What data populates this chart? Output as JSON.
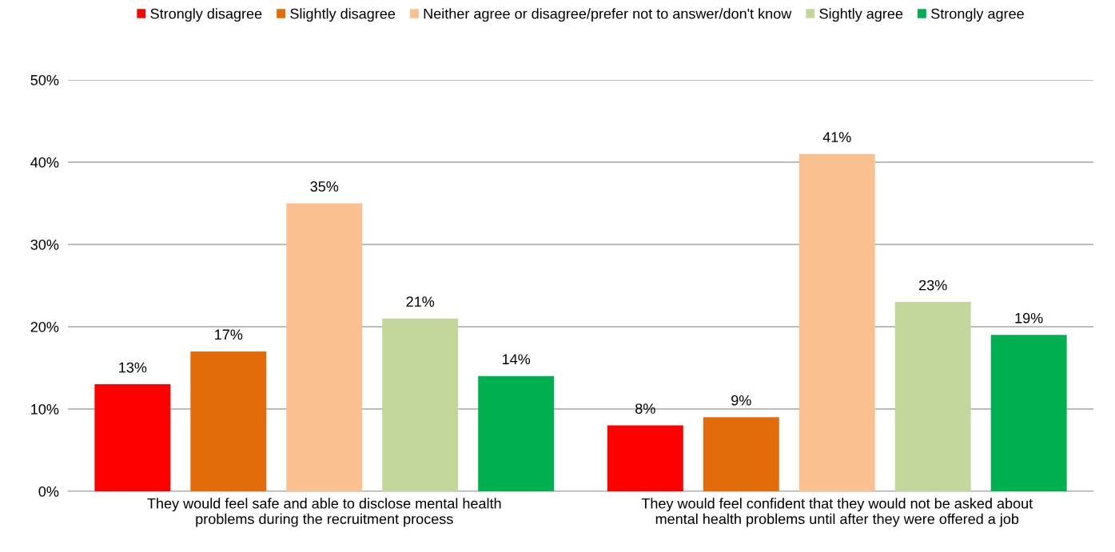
{
  "chart_data": {
    "type": "bar",
    "categories": [
      "They would feel safe and able to disclose mental health\nproblems during the recruitment process",
      "They would feel confident that they would not be asked about\nmental health problems until after they were offered a job"
    ],
    "series": [
      {
        "name": "Strongly disagree",
        "color": "#ff0000",
        "values": [
          13,
          8
        ],
        "value_labels": [
          "13%",
          "8%"
        ]
      },
      {
        "name": "Slightly disagree",
        "color": "#e36c0a",
        "values": [
          17,
          9
        ],
        "value_labels": [
          "17%",
          "9%"
        ]
      },
      {
        "name": "Neither agree or disagree/prefer not to answer/don't know",
        "color": "#fac090",
        "values": [
          35,
          41
        ],
        "value_labels": [
          "35%",
          "41%"
        ]
      },
      {
        "name": "Sightly agree",
        "color": "#c3d69b",
        "values": [
          21,
          23
        ],
        "value_labels": [
          "21%",
          "23%"
        ]
      },
      {
        "name": "Strongly agree",
        "color": "#00b050",
        "values": [
          14,
          19
        ],
        "value_labels": [
          "14%",
          "19%"
        ]
      }
    ],
    "ylim": [
      0,
      50
    ],
    "yticks": [
      {
        "value": 0,
        "label": "0%"
      },
      {
        "value": 10,
        "label": "10%"
      },
      {
        "value": 20,
        "label": "20%"
      },
      {
        "value": 30,
        "label": "30%"
      },
      {
        "value": 40,
        "label": "40%"
      },
      {
        "value": 50,
        "label": "50%"
      }
    ],
    "grid": "y",
    "legend": "top"
  }
}
